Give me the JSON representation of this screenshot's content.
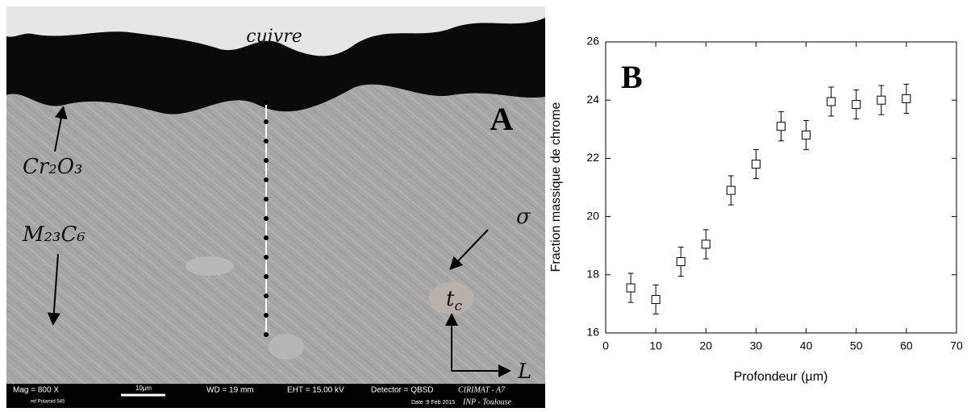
{
  "micrograph": {
    "panel": "A",
    "copper": "cuivre",
    "oxide": "Cr₂O₃",
    "carbide": "M₂₃C₆",
    "sigma": "σ",
    "t_c": {
      "symbol": "t",
      "subscript": "c"
    },
    "direction": "L",
    "info": {
      "mag": "Mag =   800 X",
      "scale": "10µm",
      "wd": "WD =  19 mm",
      "eht": "EHT = 15.00 kV",
      "detector": "Detector = QBSD",
      "lab": "CIRIMAT - A7",
      "ref": "ref Polaroid 545",
      "date": "Date :9 Feb 2015",
      "inst": "INP - Toulouse"
    }
  },
  "chart_data": {
    "type": "scatter",
    "title": "B",
    "x_label": "Profondeur (µm)",
    "y_label": "Fraction massique de chrome",
    "x": [
      5,
      10,
      15,
      20,
      25,
      30,
      35,
      40,
      45,
      50,
      55,
      60
    ],
    "values": [
      17.55,
      17.15,
      18.45,
      19.05,
      20.9,
      21.8,
      23.1,
      22.8,
      23.95,
      23.85,
      24.0,
      24.05
    ],
    "errors": [
      0.5,
      0.5,
      0.5,
      0.5,
      0.5,
      0.5,
      0.5,
      0.5,
      0.5,
      0.5,
      0.5,
      0.5
    ],
    "color": "#000000",
    "xlim": [
      0,
      70
    ],
    "xticks": [
      0,
      10,
      20,
      30,
      40,
      50,
      60,
      70
    ],
    "ylim": [
      16,
      26
    ],
    "yticks": [
      16,
      18,
      20,
      22,
      24,
      26
    ]
  }
}
